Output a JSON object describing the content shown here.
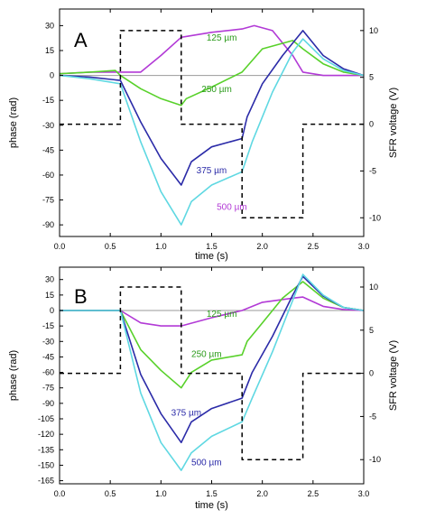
{
  "chart_data": [
    {
      "type": "line",
      "panel_label": "A",
      "xlabel": "time (s)",
      "ylabel": "phase (rad)",
      "y2label": "SFR voltage (V)",
      "xlim": [
        0,
        3
      ],
      "ylim": [
        -97,
        40
      ],
      "y2lim": [
        -12,
        12.3
      ],
      "xticks": [
        "0.0",
        "0.5",
        "1.0",
        "1.5",
        "2.0",
        "2.5",
        "3.0"
      ],
      "yticks": [
        "30",
        "15",
        "0",
        "-15",
        "-30",
        "-45",
        "-60",
        "-75",
        "-90"
      ],
      "y2ticks": [
        "10",
        "5",
        "0",
        "-5",
        "-10"
      ],
      "grid": false,
      "series": [
        {
          "name": "125 µm",
          "color": "#b23ad6",
          "x": [
            0,
            0.3,
            0.6,
            0.8,
            1.0,
            1.2,
            1.5,
            1.8,
            1.92,
            2.1,
            2.3,
            2.4,
            2.6,
            2.8,
            3.0
          ],
          "y": [
            1,
            2,
            2,
            2,
            12,
            23,
            26,
            28,
            30,
            27,
            12,
            2,
            0,
            0,
            0
          ]
        },
        {
          "name": "250 µm",
          "color": "#58d12a",
          "x": [
            0,
            0.3,
            0.55,
            0.6,
            0.8,
            1.0,
            1.2,
            1.25,
            1.5,
            1.8,
            2.0,
            2.3,
            2.4,
            2.6,
            2.8,
            3.0
          ],
          "y": [
            1,
            2,
            3,
            0,
            -8,
            -14,
            -18,
            -14,
            -7,
            2,
            16,
            21,
            16,
            7,
            2,
            0
          ]
        },
        {
          "name": "375 µm",
          "color": "#2b2ba8",
          "x": [
            0,
            0.3,
            0.6,
            0.8,
            1.0,
            1.2,
            1.3,
            1.5,
            1.8,
            1.85,
            2.0,
            2.2,
            2.4,
            2.6,
            2.8,
            3.0
          ],
          "y": [
            0,
            -1,
            -3,
            -28,
            -50,
            -66,
            -52,
            -43,
            -38,
            -25,
            -5,
            12,
            27,
            12,
            4,
            0
          ]
        },
        {
          "name": "500 µm",
          "color": "#5fd8e2",
          "x": [
            0,
            0.3,
            0.6,
            0.8,
            1.0,
            1.2,
            1.3,
            1.5,
            1.8,
            1.9,
            2.1,
            2.3,
            2.4,
            2.6,
            2.8,
            3.0
          ],
          "y": [
            0,
            -2,
            -5,
            -40,
            -70,
            -90,
            -76,
            -66,
            -58,
            -40,
            -10,
            14,
            22,
            10,
            3,
            0
          ]
        },
        {
          "name": "SFR voltage",
          "color": "#000000",
          "dashed": true,
          "axis": "right",
          "x": [
            0,
            0.6,
            0.6,
            1.2,
            1.2,
            1.8,
            1.8,
            2.4,
            2.4,
            3.0
          ],
          "y": [
            0,
            0,
            10,
            10,
            0,
            0,
            -10,
            -10,
            0,
            0
          ]
        }
      ]
    },
    {
      "type": "line",
      "panel_label": "B",
      "xlabel": "time (s)",
      "ylabel": "phase (rad)",
      "y2label": "SFR voltage (V)",
      "xlim": [
        0,
        3
      ],
      "ylim": [
        -168,
        42
      ],
      "y2lim": [
        -12.8,
        12.3
      ],
      "xticks": [
        "0.0",
        "0.5",
        "1.0",
        "1.5",
        "2.0",
        "2.5",
        "3.0"
      ],
      "yticks": [
        "30",
        "15",
        "0",
        "-15",
        "-30",
        "-45",
        "-60",
        "-75",
        "-90",
        "-105",
        "-120",
        "-135",
        "-150",
        "-165"
      ],
      "y2ticks": [
        "10",
        "5",
        "0",
        "-5",
        "-10"
      ],
      "grid": false,
      "series": [
        {
          "name": "125 µm",
          "color": "#b23ad6",
          "x": [
            0,
            0.3,
            0.6,
            0.8,
            1.0,
            1.2,
            1.5,
            1.8,
            2.0,
            2.3,
            2.4,
            2.6,
            2.8,
            3.0
          ],
          "y": [
            0,
            0,
            0,
            -12,
            -15,
            -15,
            -7,
            0,
            8,
            12,
            13,
            4,
            1,
            0
          ]
        },
        {
          "name": "250 µm",
          "color": "#58d12a",
          "x": [
            0,
            0.3,
            0.6,
            0.8,
            1.0,
            1.2,
            1.3,
            1.5,
            1.8,
            1.85,
            2.0,
            2.2,
            2.4,
            2.6,
            2.8,
            3.0
          ],
          "y": [
            0,
            0,
            0,
            -38,
            -58,
            -75,
            -60,
            -48,
            -43,
            -30,
            -12,
            12,
            28,
            12,
            3,
            0
          ]
        },
        {
          "name": "375 µm",
          "color": "#2b2ba8",
          "x": [
            0,
            0.3,
            0.6,
            0.8,
            1.0,
            1.2,
            1.3,
            1.5,
            1.8,
            1.9,
            2.1,
            2.3,
            2.4,
            2.6,
            2.8,
            3.0
          ],
          "y": [
            0,
            0,
            0,
            -62,
            -100,
            -128,
            -108,
            -95,
            -85,
            -60,
            -25,
            15,
            33,
            14,
            3,
            0
          ]
        },
        {
          "name": "500 µm",
          "color": "#5fd8e2",
          "x": [
            0,
            0.3,
            0.6,
            0.8,
            1.0,
            1.2,
            1.3,
            1.5,
            1.8,
            1.9,
            2.1,
            2.3,
            2.4,
            2.6,
            2.8,
            3.0
          ],
          "y": [
            0,
            0,
            0,
            -80,
            -128,
            -155,
            -138,
            -122,
            -108,
            -85,
            -40,
            10,
            35,
            15,
            3,
            0
          ]
        },
        {
          "name": "SFR voltage",
          "color": "#000000",
          "dashed": true,
          "axis": "right",
          "x": [
            0,
            0.6,
            0.6,
            1.2,
            1.2,
            1.8,
            1.8,
            2.4,
            2.4,
            3.0
          ],
          "y": [
            0,
            0,
            10,
            10,
            0,
            0,
            -10,
            -10,
            0,
            0
          ]
        }
      ]
    }
  ],
  "annotations": [
    [
      {
        "text": "125 µm",
        "color": "#2a9a1a",
        "x": 1.45,
        "y": 21
      },
      {
        "text": "250 µm",
        "color": "#2a9a1a",
        "x": 1.4,
        "y": -10
      },
      {
        "text": "375 µm",
        "color": "#2b2ba8",
        "x": 1.35,
        "y": -59
      },
      {
        "text": "500 µm",
        "color": "#b23ad6",
        "x": 1.55,
        "y": -81
      }
    ],
    [
      {
        "text": "125 µm",
        "color": "#2a9a1a",
        "x": 1.45,
        "y": -6
      },
      {
        "text": "250 µm",
        "color": "#2a9a1a",
        "x": 1.3,
        "y": -45
      },
      {
        "text": "375 µm",
        "color": "#2b2ba8",
        "x": 1.1,
        "y": -102
      },
      {
        "text": "500 µm",
        "color": "#2b2ba8",
        "x": 1.3,
        "y": -150
      }
    ]
  ]
}
